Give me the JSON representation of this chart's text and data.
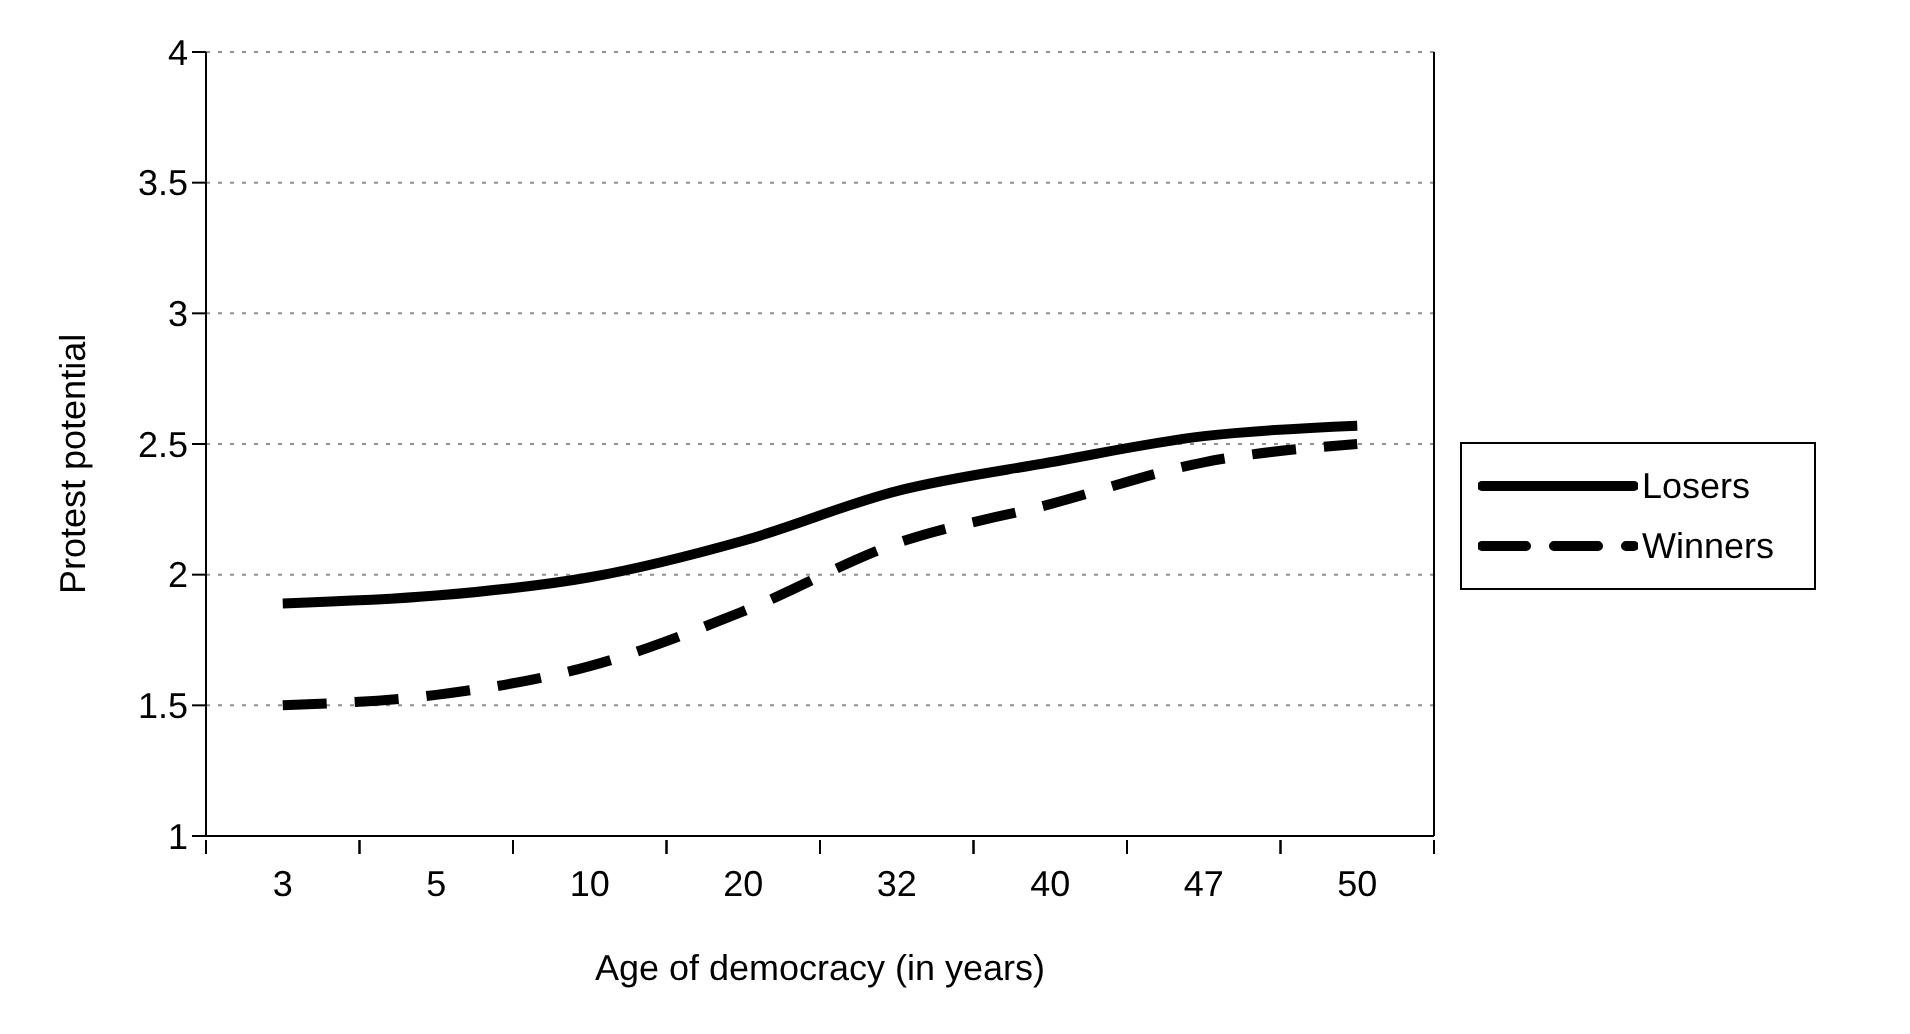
{
  "chart_data": {
    "type": "line",
    "xlabel": "Age of democracy (in years)",
    "ylabel": "Protest potential",
    "categories": [
      "3",
      "5",
      "10",
      "20",
      "32",
      "40",
      "47",
      "50"
    ],
    "ylim": [
      1,
      4
    ],
    "yticks": [
      1,
      1.5,
      2,
      2.5,
      3,
      3.5,
      4
    ],
    "grid": "y",
    "legend": "right",
    "marker": "none",
    "series": [
      {
        "name": "Losers",
        "color": "#000000",
        "line_style": "solid",
        "values": [
          1.89,
          1.92,
          1.99,
          2.13,
          2.32,
          2.43,
          2.53,
          2.57
        ]
      },
      {
        "name": "Winners",
        "color": "#000000",
        "line_style": "dashed",
        "values": [
          1.5,
          1.54,
          1.65,
          1.86,
          2.12,
          2.27,
          2.43,
          2.5
        ]
      }
    ]
  }
}
